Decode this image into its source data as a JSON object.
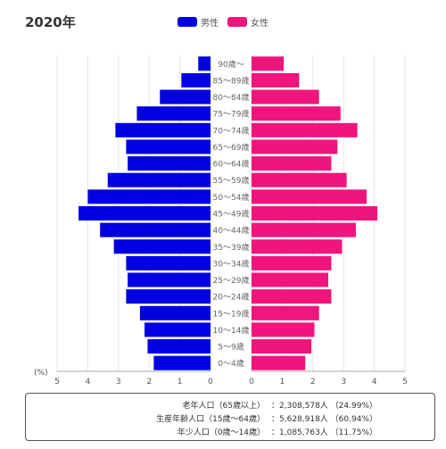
{
  "header": {
    "year_title": "2020年"
  },
  "legend": [
    {
      "label": "男性",
      "color": "#0000e0"
    },
    {
      "label": "女性",
      "color": "#f0157c"
    }
  ],
  "chart_data": {
    "type": "bar",
    "orientation": "horizontal",
    "subtype": "population-pyramid",
    "categories": [
      "0～4歳",
      "5～9歳",
      "10～14歳",
      "15～19歳",
      "20～24歳",
      "25～29歳",
      "30～34歳",
      "35～39歳",
      "40～44歳",
      "45～49歳",
      "50～54歳",
      "55～59歳",
      "60～64歳",
      "65～69歳",
      "70～74歳",
      "75～79歳",
      "80～84歳",
      "85～89歳",
      "90歳～"
    ],
    "series": [
      {
        "name": "男性",
        "color": "#0000e0",
        "side": "left",
        "values": [
          1.85,
          2.05,
          2.15,
          2.3,
          2.75,
          2.7,
          2.75,
          3.15,
          3.6,
          4.3,
          4.0,
          3.35,
          2.7,
          2.75,
          3.1,
          2.4,
          1.65,
          0.95,
          0.4
        ]
      },
      {
        "name": "女性",
        "color": "#f0157c",
        "side": "right",
        "values": [
          1.75,
          1.95,
          2.05,
          2.2,
          2.6,
          2.5,
          2.6,
          2.95,
          3.4,
          4.1,
          3.75,
          3.1,
          2.6,
          2.8,
          3.45,
          2.9,
          2.2,
          1.55,
          1.05
        ]
      }
    ],
    "xlim": [
      0,
      5
    ],
    "x_ticks": [
      "5",
      "4",
      "3",
      "2",
      "1",
      "0",
      "0",
      "1",
      "2",
      "3",
      "4",
      "5"
    ],
    "unit_label": "(%)",
    "grid": true,
    "legend_position": "top-center"
  },
  "summary": [
    {
      "label": "老年人口（65歳以上）",
      "value": "：2,308,578人 （24.99%）"
    },
    {
      "label": "生産年齢人口（15歳～64歳）",
      "value": "：5,628,918人 （60.94%）"
    },
    {
      "label": "年少人口（0歳～14歳）",
      "value": "：1,085,763人 （11.75%）"
    }
  ]
}
